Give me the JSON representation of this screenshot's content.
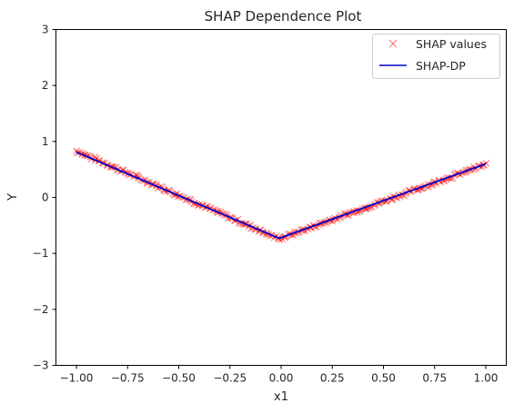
{
  "chart_data": {
    "type": "scatter",
    "title": "SHAP Dependence Plot",
    "xlabel": "x1",
    "ylabel": "Y",
    "xlim": [
      -1.1,
      1.1
    ],
    "ylim": [
      -3,
      3
    ],
    "xticks": [
      -1.0,
      -0.75,
      -0.5,
      -0.25,
      0.0,
      0.25,
      0.5,
      0.75,
      1.0
    ],
    "xtick_labels": [
      "−1.00",
      "−0.75",
      "−0.50",
      "−0.25",
      "0.00",
      "0.25",
      "0.50",
      "0.75",
      "1.00"
    ],
    "yticks": [
      -3,
      -2,
      -1,
      0,
      1,
      2,
      3
    ],
    "ytick_labels": [
      "−3",
      "−2",
      "−1",
      "0",
      "1",
      "2",
      "3"
    ],
    "legend_position": "top-right",
    "grid": false,
    "series": [
      {
        "name": "SHAP values",
        "kind": "markers",
        "marker": "x",
        "color": "#ff0000",
        "opacity": 0.5,
        "vertex_x": -0.01,
        "vertex_y": -0.74,
        "left_end": [
          -1.0,
          0.83
        ],
        "right_end": [
          1.0,
          0.59
        ],
        "x_range": [
          -1.0,
          1.0
        ],
        "spread": 0.06
      },
      {
        "name": "SHAP-DP",
        "kind": "line",
        "color": "#0000cc",
        "x": [
          -1.0,
          -0.01,
          1.0
        ],
        "y": [
          0.81,
          -0.73,
          0.6
        ]
      }
    ]
  }
}
